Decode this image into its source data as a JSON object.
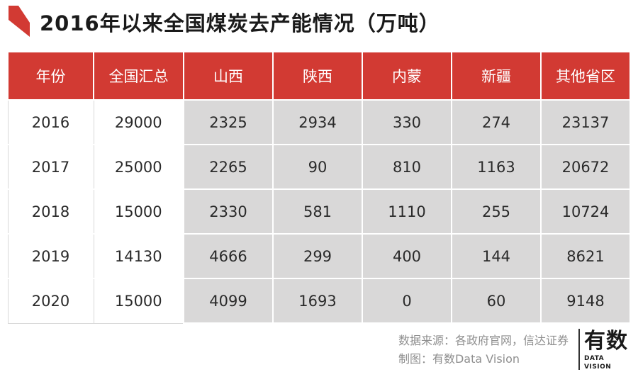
{
  "title": "2016年以来全国煤炭去产能情况（万吨）",
  "colors": {
    "accent": "#d23a33",
    "shade": "#d9d8d8"
  },
  "chart_data": {
    "type": "table",
    "title": "2016年以来全国煤炭去产能情况（万吨）",
    "columns": [
      "年份",
      "全国汇总",
      "山西",
      "陕西",
      "内蒙",
      "新疆",
      "其他省区"
    ],
    "rows": [
      [
        "2016",
        "29000",
        "2325",
        "2934",
        "330",
        "274",
        "23137"
      ],
      [
        "2017",
        "25000",
        "2265",
        "90",
        "810",
        "1163",
        "20672"
      ],
      [
        "2018",
        "15000",
        "2330",
        "581",
        "1110",
        "255",
        "10724"
      ],
      [
        "2019",
        "14130",
        "4666",
        "299",
        "400",
        "144",
        "8621"
      ],
      [
        "2020",
        "15000",
        "4099",
        "1693",
        "0",
        "60",
        "9148"
      ]
    ]
  },
  "footer": {
    "source": "数据来源：各政府官网，信达证券",
    "credit": "制图：有数Data Vision"
  },
  "logo": {
    "main": "有数",
    "sub": "DATA VISION"
  }
}
